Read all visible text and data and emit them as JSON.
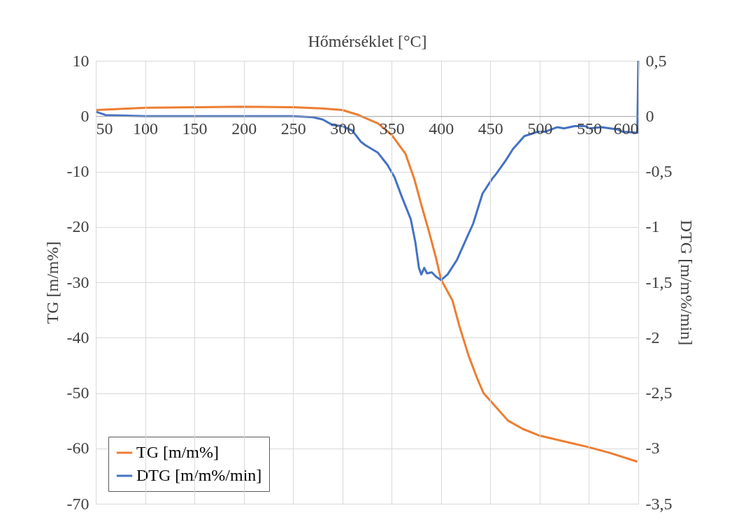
{
  "chart_data": {
    "type": "line",
    "xlabel": "Hőmérséklet [°C]",
    "ylabel": "TG  [m/m%]",
    "y2label": "DTG [m/m%/min]",
    "xlim": [
      50,
      600
    ],
    "xticks": [
      50,
      100,
      150,
      200,
      250,
      300,
      350,
      400,
      450,
      500,
      550,
      600
    ],
    "ylim": [
      -70,
      10
    ],
    "yticks": [
      -70,
      -60,
      -50,
      -40,
      -30,
      -20,
      -10,
      0,
      10
    ],
    "y2lim": [
      -3.5,
      0.5
    ],
    "y2ticks": [
      {
        "value": -3.5,
        "label": "-3,5"
      },
      -3,
      {
        "value": -2.5,
        "label": "-2,5"
      },
      -2,
      {
        "value": -1.5,
        "label": "-1,5"
      },
      -1,
      {
        "value": -0.5,
        "label": "-0,5"
      },
      0,
      {
        "value": 0.5,
        "label": "0,5"
      }
    ],
    "grid": true,
    "legend": "bottom left",
    "line_style": "solid",
    "marker": "none",
    "series": [
      {
        "name": "TG  [m/m%]",
        "color": "#ed7d31",
        "x": [
          50,
          100,
          150,
          200,
          250,
          280,
          300,
          315,
          336,
          350,
          364,
          373,
          380,
          388,
          395,
          400,
          411.6,
          418.6,
          428,
          437,
          443,
          452,
          468,
          483,
          500,
          524,
          550,
          571,
          599
        ],
        "values": [
          1.1,
          1.5,
          1.6,
          1.7,
          1.6,
          1.4,
          1.1,
          0.3,
          -1.3,
          -3.4,
          -6.8,
          -11.4,
          -16,
          -21,
          -25.7,
          -29.5,
          -33.3,
          -37.9,
          -43.3,
          -47.5,
          -50,
          -51.8,
          -55,
          -56.5,
          -57.7,
          -58.7,
          -59.8,
          -60.8,
          -62.4
        ]
      },
      {
        "name": "DTG [m/m%/min]",
        "color": "#4472c4",
        "axis": "y2",
        "x": [
          50,
          60,
          100,
          150,
          200,
          250,
          270,
          280,
          290,
          300,
          310,
          318.6,
          323,
          336,
          345.7,
          352.8,
          359.9,
          369.3,
          374,
          377.6,
          380,
          383,
          385.8,
          390.6,
          395,
          400,
          406.6,
          416,
          425.5,
          432.6,
          442,
          451.5,
          456,
          465.6,
          472.7,
          484.5,
          498.7,
          505.8,
          517.6,
          524.7,
          535.3,
          546,
          550.7,
          562.5,
          579,
          583.7,
          599,
          600
        ],
        "values": [
          0.04,
          0.01,
          0,
          0,
          0,
          0,
          -0.01,
          -0.03,
          -0.08,
          -0.09,
          -0.13,
          -0.23,
          -0.26,
          -0.33,
          -0.44,
          -0.55,
          -0.72,
          -0.93,
          -1.14,
          -1.37,
          -1.43,
          -1.37,
          -1.42,
          -1.41,
          -1.45,
          -1.48,
          -1.43,
          -1.3,
          -1.11,
          -0.97,
          -0.7,
          -0.57,
          -0.52,
          -0.4,
          -0.3,
          -0.18,
          -0.14,
          -0.14,
          -0.1,
          -0.11,
          -0.09,
          -0.09,
          -0.11,
          -0.1,
          -0.12,
          -0.14,
          -0.15,
          0.5
        ]
      }
    ]
  }
}
